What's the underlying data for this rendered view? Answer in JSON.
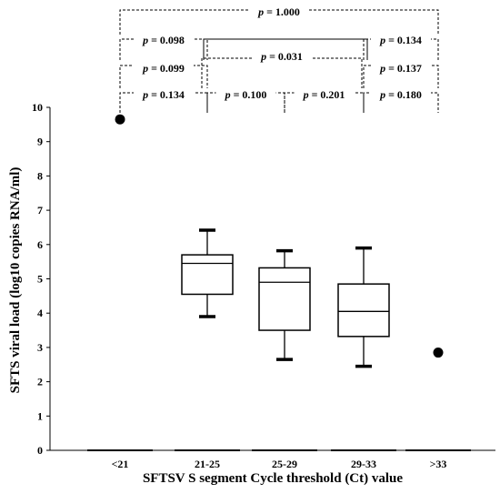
{
  "chart_data": {
    "type": "box",
    "xlabel": "SFTSV S segment Cycle threshold (Ct) value",
    "ylabel": "SFTS viral load (log10 copies RNA/ml)",
    "ylim": [
      0,
      10
    ],
    "yticks": [
      "0",
      "1",
      "2",
      "3",
      "4",
      "5",
      "6",
      "7",
      "8",
      "9",
      "10"
    ],
    "categories": [
      "<21",
      "21-25",
      "25-29",
      "29-33",
      ">33"
    ],
    "boxes": [
      {
        "category": "21-25",
        "min": 3.9,
        "q1": 4.55,
        "median": 5.45,
        "q3": 5.7,
        "max": 6.42
      },
      {
        "category": "25-29",
        "min": 2.65,
        "q1": 3.5,
        "median": 4.9,
        "q3": 5.32,
        "max": 5.82
      },
      {
        "category": "29-33",
        "min": 2.45,
        "q1": 3.32,
        "median": 4.05,
        "q3": 4.85,
        "max": 5.9
      }
    ],
    "points": [
      {
        "category": "<21",
        "value": 9.65
      },
      {
        "category": ">33",
        "value": 2.85
      }
    ],
    "comparisons": [
      {
        "from": "<21",
        "to": ">33",
        "p_label": "p",
        "p_value": "= 1.000",
        "style": "dashed"
      },
      {
        "from": "<21",
        "to": "21-25",
        "p_label": "p",
        "p_value": "= 0.098",
        "style": "dashed"
      },
      {
        "from": "21-25",
        "to": "29-33",
        "p_label": "",
        "p_value": "",
        "style": "solid"
      },
      {
        "from": "29-33",
        "to": ">33",
        "p_label": "p",
        "p_value": "= 0.134",
        "style": "dashed"
      },
      {
        "from": "<21",
        "to": "21-25",
        "p_label": "p",
        "p_value": "= 0.099",
        "style": "dashed"
      },
      {
        "from": "21-25",
        "to": "29-33",
        "p_label": "p",
        "p_value": "= 0.031",
        "style": "dashed"
      },
      {
        "from": "29-33",
        "to": ">33",
        "p_label": "p",
        "p_value": "= 0.137",
        "style": "dashed"
      },
      {
        "from": "<21",
        "to": "21-25",
        "p_label": "p",
        "p_value": "= 0.134",
        "style": "dashed"
      },
      {
        "from": "21-25",
        "to": "25-29",
        "p_label": "p",
        "p_value": "= 0.100",
        "style": "dashed"
      },
      {
        "from": "25-29",
        "to": "29-33",
        "p_label": "p",
        "p_value": "= 0.201",
        "style": "dashed"
      },
      {
        "from": "29-33",
        "to": ">33",
        "p_label": "p",
        "p_value": "= 0.180",
        "style": "dashed"
      }
    ]
  }
}
